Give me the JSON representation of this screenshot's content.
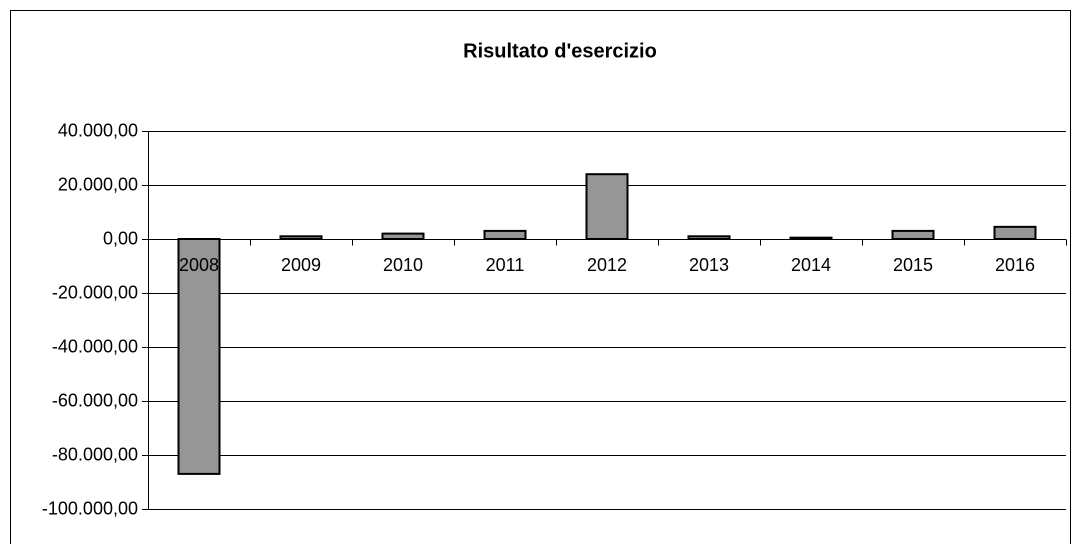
{
  "chart_data": {
    "type": "bar",
    "title": "Risultato d'esercizio",
    "categories": [
      "2008",
      "2009",
      "2010",
      "2011",
      "2012",
      "2013",
      "2014",
      "2015",
      "2016"
    ],
    "values": [
      -87000,
      1000,
      2000,
      3000,
      24000,
      1000,
      500,
      3000,
      4500
    ],
    "color": "#969696",
    "ylim": [
      -100000,
      40000
    ],
    "yticks": [
      {
        "value": -100000,
        "label": "-100.000,00"
      },
      {
        "value": -80000,
        "label": "-80.000,00"
      },
      {
        "value": -60000,
        "label": "-60.000,00"
      },
      {
        "value": -40000,
        "label": "-40.000,00"
      },
      {
        "value": -20000,
        "label": "-20.000,00"
      },
      {
        "value": 0,
        "label": "0,00"
      },
      {
        "value": 20000,
        "label": "20.000,00"
      },
      {
        "value": 40000,
        "label": "40.000,00"
      }
    ],
    "grid": true
  }
}
